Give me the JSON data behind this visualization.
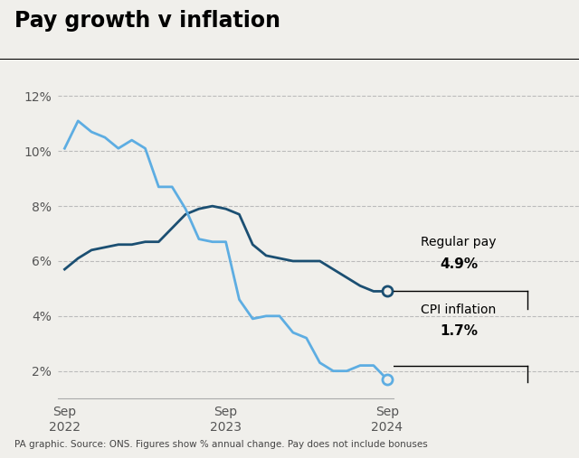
{
  "title": "Pay growth v inflation",
  "footer": "PA graphic. Source: ONS. Figures show % annual change. Pay does not include bonuses",
  "regular_pay_label": "Regular pay",
  "regular_pay_value": "4.9%",
  "cpi_label": "CPI inflation",
  "cpi_value": "1.7%",
  "regular_pay_color": "#1b4f72",
  "cpi_color": "#5dade2",
  "title_bg": "#ffffff",
  "plot_bg": "#f0efeb",
  "fig_bg": "#f0efeb",
  "ylim": [
    1.0,
    13.0
  ],
  "yticks": [
    2,
    4,
    6,
    8,
    10,
    12
  ],
  "regular_pay": [
    5.7,
    6.1,
    6.4,
    6.5,
    6.6,
    6.6,
    6.7,
    6.7,
    7.2,
    7.7,
    7.9,
    8.0,
    7.9,
    7.7,
    6.6,
    6.2,
    6.1,
    6.0,
    6.0,
    6.0,
    5.7,
    5.4,
    5.1,
    4.9,
    4.9
  ],
  "cpi": [
    10.1,
    11.1,
    10.7,
    10.5,
    10.1,
    10.4,
    10.1,
    8.7,
    8.7,
    7.9,
    6.8,
    6.7,
    6.7,
    4.6,
    3.9,
    4.0,
    4.0,
    3.4,
    3.2,
    2.3,
    2.0,
    2.0,
    2.2,
    2.2,
    1.7
  ],
  "sep_indices": [
    0,
    12,
    24
  ],
  "sep_labels": [
    "Sep\n2022",
    "Sep\n2023",
    "Sep\n2024"
  ]
}
